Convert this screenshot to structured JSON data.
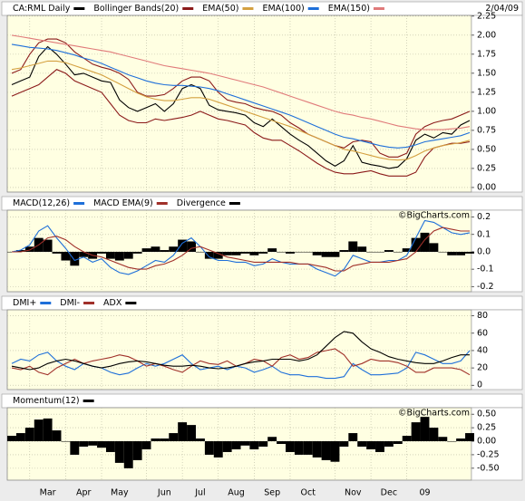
{
  "chart_data": [
    {
      "type": "line",
      "date": "2/04/09",
      "ylim": [
        -0.06,
        2.26
      ],
      "yticks": [
        {
          "value": 0,
          "label": "0.00"
        },
        0.25,
        {
          "value": 0.5,
          "label": "0.50"
        },
        0.75,
        {
          "value": 1,
          "label": "1.00"
        },
        1.25,
        {
          "value": 1.5,
          "label": "1.50"
        },
        1.75,
        {
          "value": 2,
          "label": "2.00"
        },
        2.25
      ],
      "grid": true,
      "series": [
        {
          "name": "CA:RML Daily",
          "color": "#000000",
          "values": [
            1.35,
            1.4,
            1.45,
            1.72,
            1.85,
            1.75,
            1.62,
            1.48,
            1.5,
            1.45,
            1.4,
            1.38,
            1.15,
            1.05,
            1.0,
            1.05,
            1.1,
            1.0,
            1.1,
            1.3,
            1.35,
            1.3,
            1.08,
            1.02,
            1.0,
            0.98,
            0.95,
            0.85,
            0.8,
            0.9,
            0.8,
            0.7,
            0.62,
            0.55,
            0.45,
            0.35,
            0.28,
            0.35,
            0.55,
            0.33,
            0.3,
            0.28,
            0.25,
            0.27,
            0.38,
            0.62,
            0.7,
            0.65,
            0.72,
            0.7,
            0.82,
            0.88
          ]
        },
        {
          "name": "Bollinger Bands(20)",
          "color": "#8b1a1a",
          "upper": [
            1.5,
            1.55,
            1.75,
            1.9,
            1.95,
            1.95,
            1.9,
            1.78,
            1.7,
            1.62,
            1.58,
            1.55,
            1.5,
            1.42,
            1.25,
            1.2,
            1.2,
            1.22,
            1.3,
            1.4,
            1.45,
            1.45,
            1.4,
            1.25,
            1.15,
            1.12,
            1.1,
            1.05,
            1.02,
            1.0,
            0.95,
            0.85,
            0.78,
            0.7,
            0.65,
            0.6,
            0.55,
            0.52,
            0.6,
            0.62,
            0.6,
            0.45,
            0.4,
            0.4,
            0.45,
            0.7,
            0.8,
            0.85,
            0.88,
            0.9,
            0.95,
            1.0
          ],
          "lower": [
            1.2,
            1.25,
            1.3,
            1.35,
            1.45,
            1.55,
            1.5,
            1.4,
            1.35,
            1.3,
            1.25,
            1.1,
            0.95,
            0.88,
            0.85,
            0.85,
            0.9,
            0.88,
            0.9,
            0.92,
            0.95,
            1.0,
            0.95,
            0.9,
            0.88,
            0.85,
            0.82,
            0.72,
            0.65,
            0.62,
            0.62,
            0.55,
            0.48,
            0.4,
            0.32,
            0.25,
            0.2,
            0.18,
            0.18,
            0.2,
            0.22,
            0.18,
            0.15,
            0.15,
            0.15,
            0.2,
            0.4,
            0.52,
            0.55,
            0.58,
            0.58,
            0.6
          ]
        },
        {
          "name": "EMA(50)",
          "color": "#d4a040",
          "values": [
            1.55,
            1.57,
            1.6,
            1.63,
            1.66,
            1.66,
            1.64,
            1.6,
            1.56,
            1.52,
            1.48,
            1.42,
            1.36,
            1.3,
            1.24,
            1.19,
            1.16,
            1.14,
            1.14,
            1.16,
            1.18,
            1.18,
            1.16,
            1.12,
            1.08,
            1.04,
            1.0,
            0.96,
            0.92,
            0.88,
            0.84,
            0.8,
            0.75,
            0.7,
            0.65,
            0.6,
            0.55,
            0.5,
            0.48,
            0.45,
            0.42,
            0.39,
            0.37,
            0.36,
            0.37,
            0.42,
            0.48,
            0.52,
            0.55,
            0.57,
            0.59,
            0.62
          ]
        },
        {
          "name": "EMA(100)",
          "color": "#1e6fd9",
          "values": [
            1.88,
            1.86,
            1.84,
            1.83,
            1.82,
            1.8,
            1.77,
            1.74,
            1.7,
            1.67,
            1.63,
            1.58,
            1.53,
            1.48,
            1.44,
            1.4,
            1.37,
            1.35,
            1.34,
            1.34,
            1.33,
            1.32,
            1.3,
            1.27,
            1.23,
            1.19,
            1.15,
            1.11,
            1.07,
            1.03,
            0.99,
            0.95,
            0.9,
            0.85,
            0.8,
            0.75,
            0.7,
            0.66,
            0.64,
            0.61,
            0.58,
            0.55,
            0.53,
            0.52,
            0.53,
            0.56,
            0.6,
            0.62,
            0.64,
            0.66,
            0.68,
            0.72
          ]
        },
        {
          "name": "EMA(150)",
          "color": "#e07a7a",
          "values": [
            2.0,
            1.98,
            1.96,
            1.94,
            1.92,
            1.9,
            1.88,
            1.86,
            1.84,
            1.82,
            1.8,
            1.78,
            1.75,
            1.72,
            1.69,
            1.66,
            1.63,
            1.6,
            1.58,
            1.56,
            1.54,
            1.52,
            1.5,
            1.47,
            1.44,
            1.41,
            1.38,
            1.35,
            1.32,
            1.28,
            1.24,
            1.2,
            1.16,
            1.12,
            1.08,
            1.04,
            1.0,
            0.97,
            0.95,
            0.92,
            0.9,
            0.87,
            0.84,
            0.81,
            0.79,
            0.77,
            0.76,
            0.76,
            0.76,
            0.77,
            0.78,
            0.8
          ]
        }
      ]
    },
    {
      "type": "line",
      "watermark": "©BigCharts.com",
      "ylim": [
        -0.23,
        0.24
      ],
      "yticks": [
        -0.2,
        -0.1,
        {
          "value": 0,
          "label": "0.0"
        },
        0.1,
        0.2
      ],
      "grid": true,
      "series": [
        {
          "name": "MACD(12,26)",
          "color": "#1e6fd9",
          "values": [
            0.0,
            0.01,
            0.04,
            0.12,
            0.15,
            0.08,
            0.02,
            -0.05,
            -0.03,
            -0.06,
            -0.04,
            -0.09,
            -0.12,
            -0.13,
            -0.11,
            -0.08,
            -0.05,
            -0.06,
            -0.02,
            0.05,
            0.08,
            0.03,
            -0.03,
            -0.05,
            -0.05,
            -0.06,
            -0.06,
            -0.08,
            -0.07,
            -0.04,
            -0.06,
            -0.07,
            -0.07,
            -0.07,
            -0.1,
            -0.12,
            -0.14,
            -0.1,
            -0.02,
            -0.04,
            -0.06,
            -0.06,
            -0.05,
            -0.05,
            -0.02,
            0.08,
            0.18,
            0.17,
            0.14,
            0.11,
            0.1,
            0.11
          ]
        },
        {
          "name": "MACD EMA(9)",
          "color": "#a0302a",
          "values": [
            0.0,
            0.0,
            0.01,
            0.04,
            0.08,
            0.09,
            0.07,
            0.03,
            0.0,
            -0.02,
            -0.03,
            -0.05,
            -0.07,
            -0.09,
            -0.1,
            -0.1,
            -0.08,
            -0.07,
            -0.05,
            -0.02,
            0.02,
            0.03,
            0.01,
            -0.01,
            -0.03,
            -0.04,
            -0.05,
            -0.06,
            -0.06,
            -0.06,
            -0.06,
            -0.06,
            -0.07,
            -0.07,
            -0.08,
            -0.09,
            -0.11,
            -0.11,
            -0.08,
            -0.07,
            -0.06,
            -0.06,
            -0.06,
            -0.05,
            -0.04,
            0.0,
            0.07,
            0.12,
            0.14,
            0.13,
            0.12,
            0.12
          ]
        },
        {
          "name": "Divergence",
          "color": "#000000",
          "type": "bar",
          "values": [
            0.0,
            0.01,
            0.03,
            0.08,
            0.07,
            -0.01,
            -0.05,
            -0.08,
            -0.03,
            -0.04,
            -0.01,
            -0.04,
            -0.05,
            -0.04,
            -0.01,
            0.02,
            0.03,
            0.01,
            0.03,
            0.07,
            0.06,
            0.0,
            -0.04,
            -0.04,
            -0.02,
            -0.02,
            -0.01,
            -0.02,
            -0.01,
            0.02,
            0.0,
            -0.01,
            0.0,
            0.0,
            -0.02,
            -0.03,
            -0.03,
            0.01,
            0.06,
            0.03,
            0.0,
            0.0,
            0.01,
            0.0,
            0.02,
            0.08,
            0.11,
            0.05,
            0.0,
            -0.02,
            -0.02,
            -0.01
          ]
        }
      ]
    },
    {
      "type": "line",
      "ylim": [
        -5,
        87
      ],
      "yticks": [
        0,
        20,
        40,
        60,
        80
      ],
      "grid": true,
      "series": [
        {
          "name": "DMI+",
          "color": "#1e6fd9",
          "values": [
            25,
            30,
            28,
            35,
            38,
            28,
            22,
            18,
            25,
            22,
            20,
            15,
            12,
            14,
            20,
            25,
            22,
            25,
            30,
            35,
            25,
            18,
            20,
            22,
            18,
            22,
            20,
            15,
            18,
            22,
            15,
            12,
            12,
            10,
            10,
            8,
            8,
            10,
            25,
            18,
            12,
            12,
            13,
            14,
            20,
            38,
            35,
            30,
            25,
            25,
            28,
            40
          ]
        },
        {
          "name": "DMI-",
          "color": "#a0302a",
          "values": [
            20,
            18,
            22,
            15,
            12,
            20,
            25,
            30,
            25,
            28,
            30,
            32,
            35,
            33,
            28,
            22,
            25,
            22,
            18,
            15,
            22,
            28,
            25,
            24,
            28,
            22,
            25,
            30,
            28,
            22,
            32,
            35,
            30,
            32,
            38,
            40,
            42,
            35,
            22,
            25,
            30,
            28,
            28,
            26,
            22,
            15,
            15,
            20,
            20,
            20,
            18,
            12
          ]
        },
        {
          "name": "ADX",
          "color": "#000000",
          "values": [
            22,
            20,
            18,
            20,
            25,
            28,
            30,
            28,
            25,
            22,
            20,
            22,
            25,
            27,
            28,
            27,
            25,
            23,
            22,
            22,
            23,
            22,
            20,
            19,
            20,
            22,
            25,
            27,
            28,
            30,
            30,
            30,
            28,
            30,
            35,
            45,
            55,
            62,
            60,
            50,
            42,
            38,
            33,
            30,
            28,
            26,
            25,
            25,
            28,
            32,
            35,
            35
          ]
        }
      ]
    },
    {
      "type": "bar",
      "watermark": "©BigCharts.com",
      "ylim": [
        -0.72,
        0.62
      ],
      "yticks": [
        {
          "value": -0.5,
          "label": "-0.50"
        },
        -0.25,
        {
          "value": 0,
          "label": "0.00"
        },
        0.25,
        {
          "value": 0.5,
          "label": "0.50"
        }
      ],
      "grid": true,
      "categories": [
        null,
        null,
        null,
        null,
        "Mar",
        null,
        null,
        null,
        "Apr",
        null,
        null,
        null,
        "May",
        null,
        null,
        null,
        null,
        "Jun",
        null,
        null,
        null,
        "Jul",
        null,
        null,
        null,
        "Aug",
        null,
        null,
        null,
        "Sep",
        null,
        null,
        null,
        "Oct",
        null,
        null,
        null,
        null,
        "Nov",
        null,
        null,
        null,
        "Dec",
        null,
        null,
        null,
        "09",
        null,
        null,
        null,
        null,
        null
      ],
      "series": [
        {
          "name": "Momentum(12)",
          "color": "#000000",
          "values": [
            0.1,
            0.15,
            0.25,
            0.4,
            0.42,
            0.2,
            0.0,
            -0.25,
            -0.1,
            -0.08,
            -0.12,
            -0.2,
            -0.4,
            -0.5,
            -0.35,
            -0.15,
            0.05,
            0.05,
            0.15,
            0.35,
            0.3,
            0.05,
            -0.25,
            -0.3,
            -0.2,
            -0.15,
            -0.08,
            -0.15,
            -0.1,
            0.08,
            -0.05,
            -0.2,
            -0.25,
            -0.25,
            -0.3,
            -0.35,
            -0.38,
            -0.1,
            0.15,
            -0.1,
            -0.15,
            -0.2,
            -0.1,
            -0.05,
            0.1,
            0.35,
            0.45,
            0.25,
            0.08,
            0.0,
            0.05,
            0.15
          ]
        }
      ]
    }
  ]
}
